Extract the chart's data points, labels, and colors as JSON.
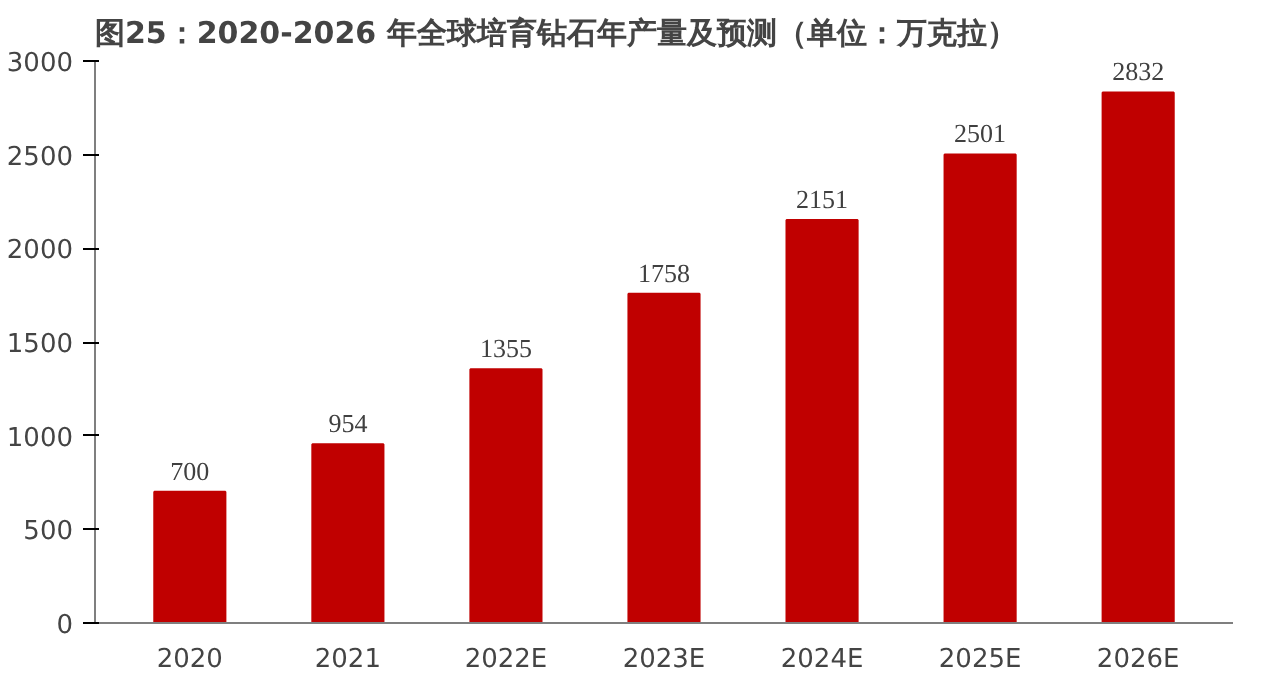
{
  "chart_data": {
    "type": "bar",
    "title": "图25：2020-2026 年全球培育钻石年产量及预测（单位：万克拉）",
    "categories": [
      "2020",
      "2021",
      "2022E",
      "2023E",
      "2024E",
      "2025E",
      "2026E"
    ],
    "values": [
      700,
      954,
      1355,
      1758,
      2151,
      2501,
      2832
    ],
    "color": "#c00000",
    "ylim": [
      0,
      3000
    ],
    "yticks": [
      0,
      500,
      1000,
      1500,
      2000,
      2500,
      3000
    ],
    "grid": false,
    "data_labels": true
  }
}
